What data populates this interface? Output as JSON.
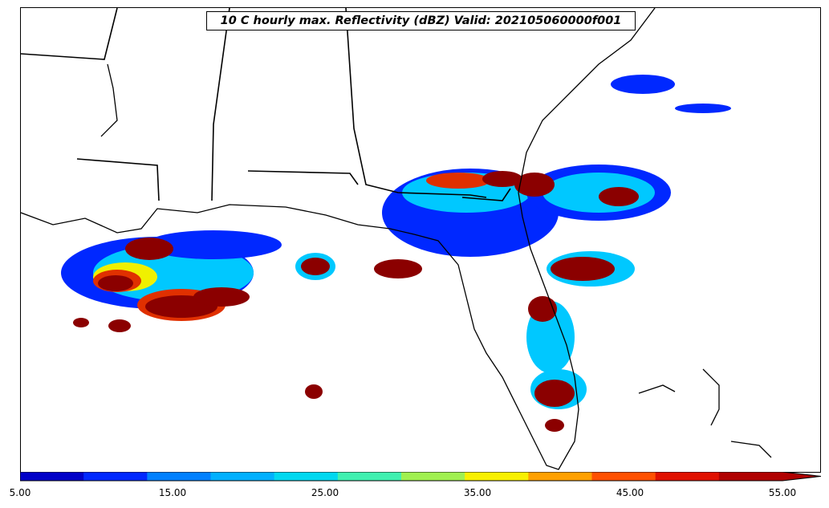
{
  "title": "10 C hourly max. Reflectivity (dBZ) Valid: 202105060000f001",
  "colorbar": {
    "colors": [
      "#0000c8",
      "#0028ff",
      "#0080ff",
      "#00b0ff",
      "#00d8f0",
      "#40f0b0",
      "#a0f050",
      "#f8f000",
      "#ffa000",
      "#ff5000",
      "#e01000",
      "#b00000"
    ],
    "tick_labels": [
      "5.00",
      "15.00",
      "25.00",
      "35.00",
      "45.00",
      "55.00"
    ],
    "extend": "max"
  },
  "palette": {
    "coast": "#000000",
    "state_border": "#000000",
    "blue": "#0028ff",
    "cyan": "#00c8ff",
    "green": "#60f090",
    "yellow": "#f0f000",
    "red": "#e03000",
    "darkred": "#8b0000"
  }
}
